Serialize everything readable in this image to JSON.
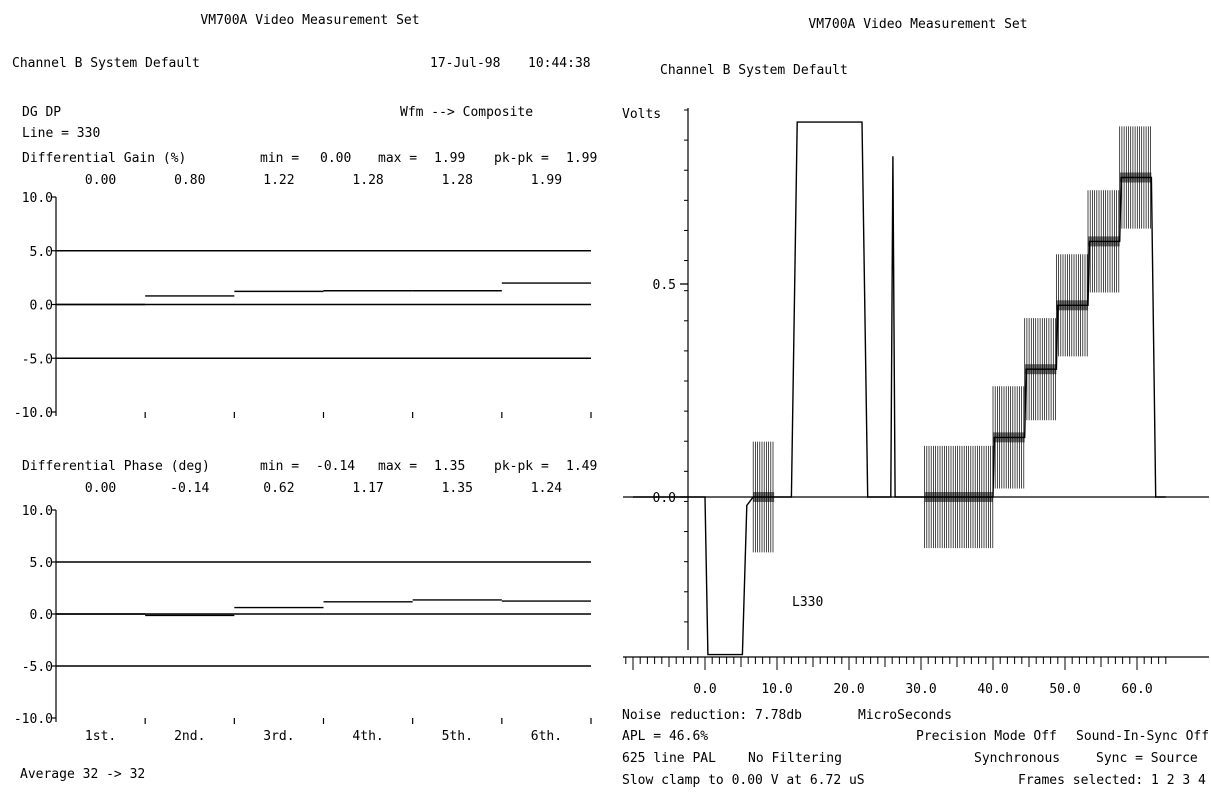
{
  "left": {
    "header_title": "VM700A Video Measurement Set",
    "channel": "Channel B  System Default",
    "date": "17-Jul-98",
    "time": "10:44:38",
    "measurement": "DG DP",
    "mode": "Wfm --> Composite",
    "line": "Line = 330",
    "average": "Average  32 ->  32"
  },
  "right": {
    "header_title": "VM700A Video Measurement Set",
    "channel": "Channel B  System Default",
    "line_label": "L330",
    "info": {
      "noise": "Noise reduction: 7.78db",
      "apl": "APL =  46.6%",
      "line_std": "625 line PAL",
      "filtering": "No Filtering",
      "clamp": "Slow clamp to 0.00 V at 6.72 uS",
      "precision": "Precision Mode Off",
      "sound": "Sound-In-Sync Off",
      "synchronous": "Synchronous",
      "sync": "Sync = Source",
      "frames": "Frames selected: 1 2 3 4"
    }
  },
  "colors": {
    "ink": "#000000",
    "background": "#ffffff"
  },
  "chart_data": [
    {
      "type": "step",
      "title": "Differential Gain (%)",
      "stats": {
        "min_label": "min =",
        "min": "0.00",
        "max_label": "max =",
        "max": "1.99",
        "pkpk_label": "pk-pk =",
        "pkpk": "1.99"
      },
      "categories": [
        "1st.",
        "2nd.",
        "3rd.",
        "4th.",
        "5th.",
        "6th."
      ],
      "value_labels": [
        "0.00",
        "0.80",
        "1.22",
        "1.28",
        "1.28",
        "1.99"
      ],
      "values": [
        0.0,
        0.8,
        1.22,
        1.28,
        1.28,
        1.99
      ],
      "yticks": [
        "10.0",
        "5.0",
        "0.0",
        "-5.0",
        "-10.0"
      ],
      "ylim": [
        -10,
        10
      ],
      "reference_lines": [
        5,
        0,
        -5
      ]
    },
    {
      "type": "step",
      "title": "Differential Phase (deg)",
      "stats": {
        "min_label": "min =",
        "min": "-0.14",
        "max_label": "max =",
        "max": "1.35",
        "pkpk_label": "pk-pk =",
        "pkpk": "1.49"
      },
      "categories": [
        "1st.",
        "2nd.",
        "3rd.",
        "4th.",
        "5th.",
        "6th."
      ],
      "value_labels": [
        "0.00",
        "-0.14",
        "0.62",
        "1.17",
        "1.35",
        "1.24"
      ],
      "values": [
        0.0,
        -0.14,
        0.62,
        1.17,
        1.35,
        1.24
      ],
      "yticks": [
        "10.0",
        "5.0",
        "0.0",
        "-5.0",
        "-10.0"
      ],
      "ylim": [
        -10,
        10
      ],
      "reference_lines": [
        5,
        0,
        -5
      ]
    },
    {
      "type": "line",
      "ylabel": "Volts",
      "xlabel": "MicroSeconds",
      "yticks": [
        "0.5",
        "0.0"
      ],
      "xticks": [
        "0.0",
        "10.0",
        "20.0",
        "30.0",
        "40.0",
        "50.0",
        "60.0"
      ],
      "xlim": [
        -10,
        64
      ],
      "ylim": [
        -0.4,
        1.15
      ],
      "series": [
        {
          "trace": [
            [
              -10,
              0
            ],
            [
              0,
              0
            ],
            [
              0.4,
              -0.37
            ],
            [
              5.2,
              -0.37
            ],
            [
              5.8,
              -0.02
            ],
            [
              6.7,
              0
            ],
            [
              12,
              0
            ],
            [
              12.8,
              0.88
            ],
            [
              21.8,
              0.88
            ],
            [
              22.6,
              0
            ],
            [
              25.8,
              0
            ],
            [
              26.1,
              0.8
            ],
            [
              26.4,
              0
            ],
            [
              30.5,
              0
            ],
            [
              40,
              0
            ],
            [
              40.2,
              0.14
            ],
            [
              44.4,
              0.14
            ],
            [
              44.6,
              0.3
            ],
            [
              48.8,
              0.3
            ],
            [
              49,
              0.45
            ],
            [
              53.2,
              0.45
            ],
            [
              53.4,
              0.6
            ],
            [
              57.6,
              0.6
            ],
            [
              57.8,
              0.75
            ],
            [
              62,
              0.75
            ],
            [
              62.6,
              0
            ],
            [
              64,
              0
            ]
          ],
          "bursts": [
            {
              "x0": 6.7,
              "x1": 9.6,
              "center": 0,
              "half_amplitude": 0.13
            },
            {
              "x0": 30.5,
              "x1": 40,
              "center": 0,
              "half_amplitude": 0.12
            },
            {
              "x0": 40,
              "x1": 44.4,
              "center": 0.14,
              "half_amplitude": 0.12
            },
            {
              "x0": 44.4,
              "x1": 48.8,
              "center": 0.3,
              "half_amplitude": 0.12
            },
            {
              "x0": 48.8,
              "x1": 53.2,
              "center": 0.45,
              "half_amplitude": 0.12
            },
            {
              "x0": 53.2,
              "x1": 57.6,
              "center": 0.6,
              "half_amplitude": 0.12
            },
            {
              "x0": 57.6,
              "x1": 62,
              "center": 0.75,
              "half_amplitude": 0.12
            }
          ]
        }
      ]
    }
  ]
}
